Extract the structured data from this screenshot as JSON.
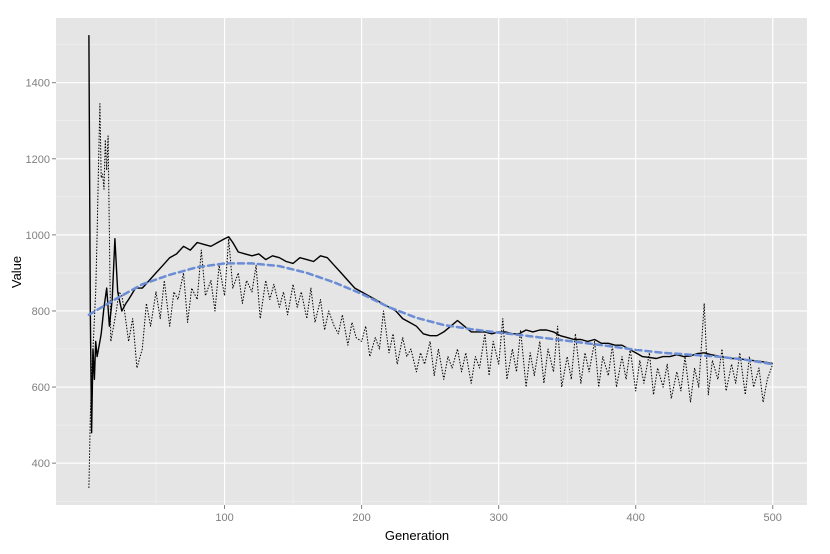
{
  "chart_data": {
    "type": "line",
    "xlabel": "Generation",
    "ylabel": "Value",
    "xlim": [
      -23,
      525
    ],
    "ylim": [
      290,
      1570
    ],
    "x_ticks": [
      100,
      200,
      300,
      400,
      500
    ],
    "y_ticks": [
      400,
      600,
      800,
      1000,
      1200,
      1400
    ],
    "grid": true,
    "legend": "none",
    "colors": {
      "panel": "#e5e5e5",
      "grid_major": "#ffffff",
      "grid_minor": "#f2f2f2",
      "solid": "#000000",
      "dotted": "#000000",
      "smooth": "#6b8dd6"
    },
    "series": [
      {
        "style": "solid",
        "x": [
          1,
          2,
          3,
          4,
          5,
          6,
          7,
          8,
          9,
          10,
          12,
          14,
          16,
          18,
          20,
          22,
          25,
          28,
          30,
          35,
          40,
          45,
          50,
          55,
          60,
          65,
          70,
          75,
          80,
          85,
          90,
          95,
          100,
          103,
          106,
          110,
          115,
          120,
          125,
          130,
          135,
          140,
          145,
          150,
          155,
          160,
          165,
          170,
          175,
          180,
          185,
          190,
          195,
          200,
          205,
          210,
          215,
          220,
          225,
          230,
          235,
          240,
          245,
          250,
          255,
          260,
          265,
          270,
          275,
          280,
          285,
          290,
          295,
          300,
          305,
          310,
          315,
          320,
          325,
          330,
          335,
          340,
          345,
          350,
          355,
          360,
          365,
          370,
          375,
          380,
          385,
          390,
          395,
          400,
          405,
          410,
          415,
          420,
          425,
          430,
          435,
          440,
          445,
          450,
          455,
          460,
          465,
          470,
          475,
          480,
          485,
          490,
          495,
          500
        ],
        "y": [
          1525,
          800,
          480,
          700,
          620,
          720,
          680,
          700,
          720,
          740,
          810,
          860,
          760,
          830,
          990,
          850,
          800,
          820,
          830,
          860,
          860,
          880,
          900,
          920,
          940,
          950,
          970,
          960,
          980,
          975,
          970,
          980,
          990,
          995,
          980,
          955,
          950,
          945,
          950,
          935,
          945,
          940,
          930,
          925,
          940,
          935,
          930,
          945,
          940,
          920,
          900,
          880,
          860,
          850,
          840,
          830,
          820,
          810,
          800,
          780,
          770,
          760,
          740,
          735,
          735,
          745,
          760,
          775,
          760,
          745,
          745,
          745,
          740,
          745,
          745,
          740,
          740,
          750,
          745,
          750,
          750,
          745,
          735,
          730,
          725,
          725,
          720,
          725,
          715,
          715,
          710,
          710,
          700,
          690,
          680,
          678,
          675,
          680,
          680,
          685,
          680,
          682,
          688,
          690,
          685,
          682,
          678,
          675,
          675,
          672,
          670,
          668,
          665,
          662
        ]
      },
      {
        "style": "dotted",
        "x": [
          1,
          2,
          3,
          4,
          5,
          6,
          7,
          8,
          9,
          10,
          11,
          12,
          13,
          14,
          15,
          17,
          19,
          21,
          23,
          25,
          27,
          30,
          33,
          36,
          40,
          43,
          46,
          50,
          53,
          56,
          60,
          63,
          66,
          70,
          73,
          76,
          80,
          83,
          86,
          90,
          93,
          96,
          100,
          103,
          106,
          110,
          113,
          116,
          120,
          123,
          126,
          130,
          133,
          136,
          140,
          143,
          146,
          150,
          153,
          156,
          160,
          163,
          166,
          170,
          173,
          176,
          180,
          183,
          186,
          190,
          193,
          196,
          200,
          203,
          206,
          210,
          213,
          216,
          220,
          223,
          226,
          230,
          233,
          236,
          240,
          243,
          246,
          250,
          253,
          256,
          260,
          263,
          266,
          270,
          273,
          276,
          280,
          283,
          286,
          290,
          293,
          296,
          300,
          303,
          306,
          310,
          313,
          316,
          320,
          323,
          326,
          330,
          333,
          336,
          340,
          343,
          346,
          350,
          353,
          356,
          360,
          363,
          366,
          370,
          373,
          376,
          380,
          383,
          386,
          390,
          393,
          396,
          400,
          403,
          406,
          410,
          413,
          416,
          420,
          423,
          426,
          430,
          433,
          436,
          440,
          443,
          446,
          450,
          453,
          456,
          460,
          463,
          466,
          470,
          473,
          476,
          480,
          483,
          486,
          490,
          493,
          496,
          500
        ],
        "y": [
          335,
          520,
          630,
          700,
          780,
          850,
          1000,
          1180,
          1345,
          1150,
          1160,
          1120,
          1250,
          1170,
          1260,
          720,
          760,
          800,
          850,
          840,
          800,
          720,
          780,
          650,
          700,
          820,
          760,
          850,
          780,
          880,
          760,
          850,
          830,
          900,
          770,
          860,
          830,
          960,
          840,
          880,
          800,
          920,
          840,
          990,
          860,
          900,
          820,
          880,
          850,
          920,
          780,
          880,
          830,
          870,
          810,
          850,
          790,
          870,
          810,
          850,
          780,
          860,
          770,
          830,
          750,
          800,
          760,
          740,
          790,
          710,
          770,
          730,
          720,
          760,
          680,
          730,
          700,
          800,
          690,
          740,
          660,
          730,
          680,
          700,
          640,
          690,
          660,
          720,
          630,
          700,
          620,
          680,
          650,
          700,
          640,
          690,
          610,
          680,
          650,
          740,
          630,
          720,
          660,
          780,
          620,
          700,
          640,
          750,
          600,
          690,
          630,
          720,
          610,
          700,
          640,
          760,
          600,
          680,
          620,
          740,
          610,
          690,
          640,
          720,
          600,
          680,
          630,
          710,
          600,
          680,
          620,
          700,
          590,
          670,
          610,
          690,
          580,
          650,
          600,
          660,
          570,
          640,
          590,
          680,
          560,
          650,
          600,
          820,
          580,
          670,
          620,
          700,
          590,
          660,
          610,
          690,
          580,
          680,
          600,
          650,
          560,
          620,
          660
        ]
      },
      {
        "style": "dashed-smooth",
        "x": [
          1,
          20,
          40,
          60,
          80,
          100,
          120,
          140,
          160,
          180,
          200,
          220,
          240,
          260,
          280,
          300,
          320,
          340,
          360,
          380,
          400,
          420,
          440,
          460,
          480,
          500
        ],
        "y": [
          790,
          830,
          870,
          895,
          915,
          925,
          925,
          918,
          900,
          875,
          845,
          810,
          782,
          763,
          752,
          743,
          735,
          726,
          717,
          708,
          698,
          690,
          685,
          680,
          672,
          660
        ]
      }
    ]
  }
}
